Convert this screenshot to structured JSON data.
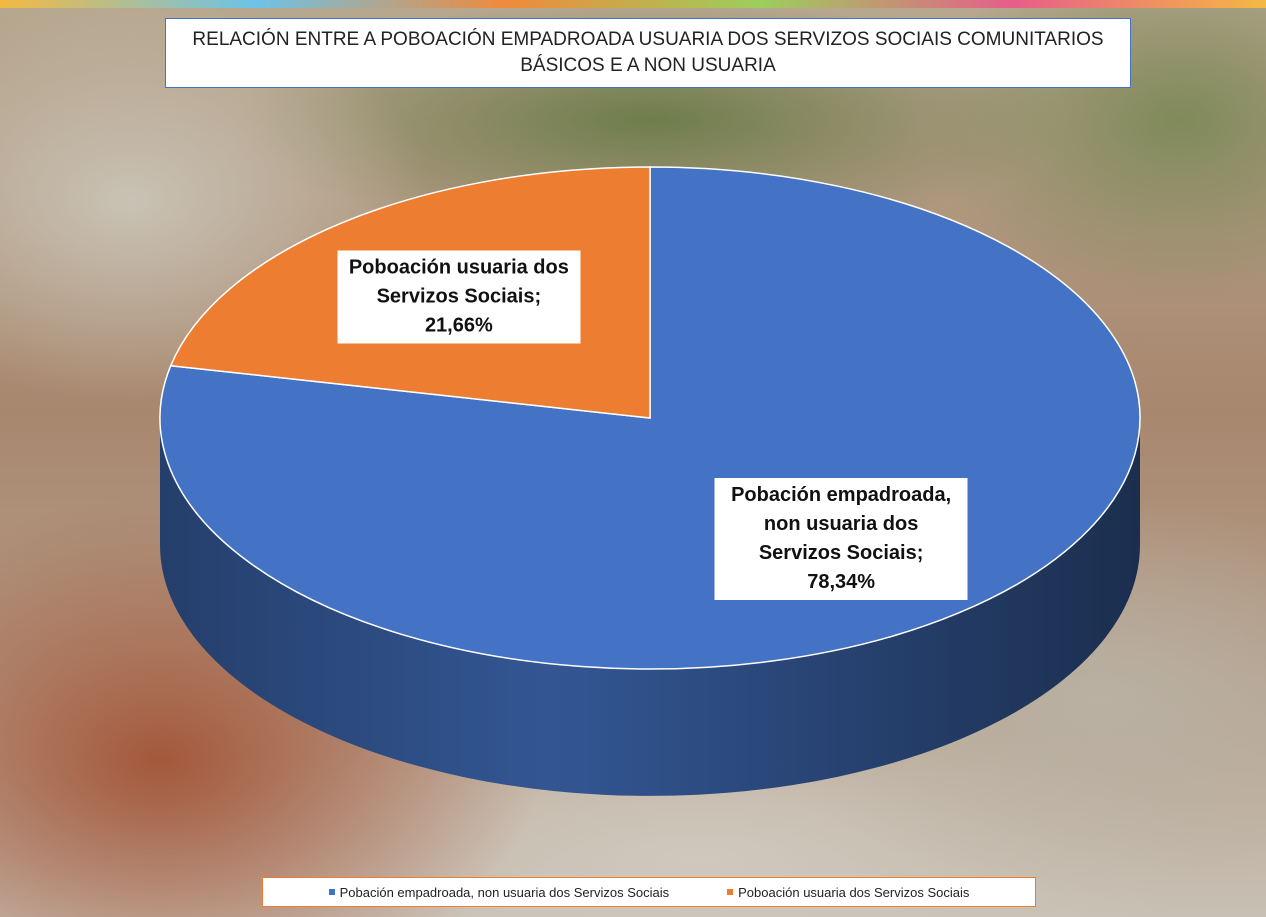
{
  "chart_data": {
    "type": "pie",
    "title": "RELACIÓN ENTRE A POBOACIÓN EMPADROADA USUARIA DOS SERVIZOS SOCIAIS COMUNITARIOS BÁSICOS E A NON USUARIA",
    "categories": [
      "Pobación empadroada, non usuaria dos Servizos Sociais",
      "Poboación usuaria dos Servizos Sociais"
    ],
    "values": [
      78.34,
      21.66
    ],
    "value_labels": [
      "78,34%",
      "21,66%"
    ],
    "colors": [
      "#4472c4",
      "#ed7d31"
    ],
    "legend": "bottom"
  }
}
